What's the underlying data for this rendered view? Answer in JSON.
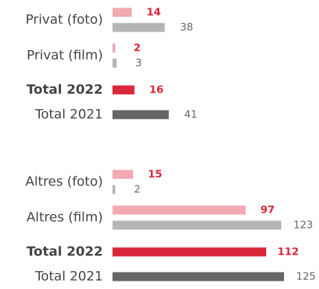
{
  "chart_data": {
    "type": "bar",
    "orientation": "horizontal",
    "groups": [
      {
        "items": [
          {
            "label": "Privat (foto)",
            "values": [
              14,
              38
            ],
            "colors": [
              "#f2a9b1",
              "#b5b5b5"
            ],
            "label_colors": [
              "#d8283a",
              "#666666"
            ]
          },
          {
            "label": "Privat (film)",
            "values": [
              2,
              3
            ],
            "colors": [
              "#f2a9b1",
              "#b5b5b5"
            ],
            "label_colors": [
              "#d8283a",
              "#666666"
            ]
          },
          {
            "label": "Total 2022",
            "bold": true,
            "values": [
              16
            ],
            "colors": [
              "#d8283a"
            ],
            "label_colors": [
              "#d8283a"
            ]
          },
          {
            "label": "Total 2021",
            "values": [
              41
            ],
            "colors": [
              "#666666"
            ],
            "label_colors": [
              "#666666"
            ]
          }
        ]
      },
      {
        "items": [
          {
            "label": "Altres (foto)",
            "values": [
              15,
              2
            ],
            "colors": [
              "#f2a9b1",
              "#b5b5b5"
            ],
            "label_colors": [
              "#d8283a",
              "#666666"
            ]
          },
          {
            "label": "Altres (film)",
            "values": [
              97,
              123
            ],
            "colors": [
              "#f2a9b1",
              "#b5b5b5"
            ],
            "label_colors": [
              "#d8283a",
              "#666666"
            ]
          },
          {
            "label": "Total 2022",
            "bold": true,
            "values": [
              112
            ],
            "colors": [
              "#d8283a"
            ],
            "label_colors": [
              "#d8283a"
            ]
          },
          {
            "label": "Total 2021",
            "values": [
              125
            ],
            "colors": [
              "#666666"
            ],
            "label_colors": [
              "#666666"
            ]
          }
        ]
      }
    ]
  }
}
